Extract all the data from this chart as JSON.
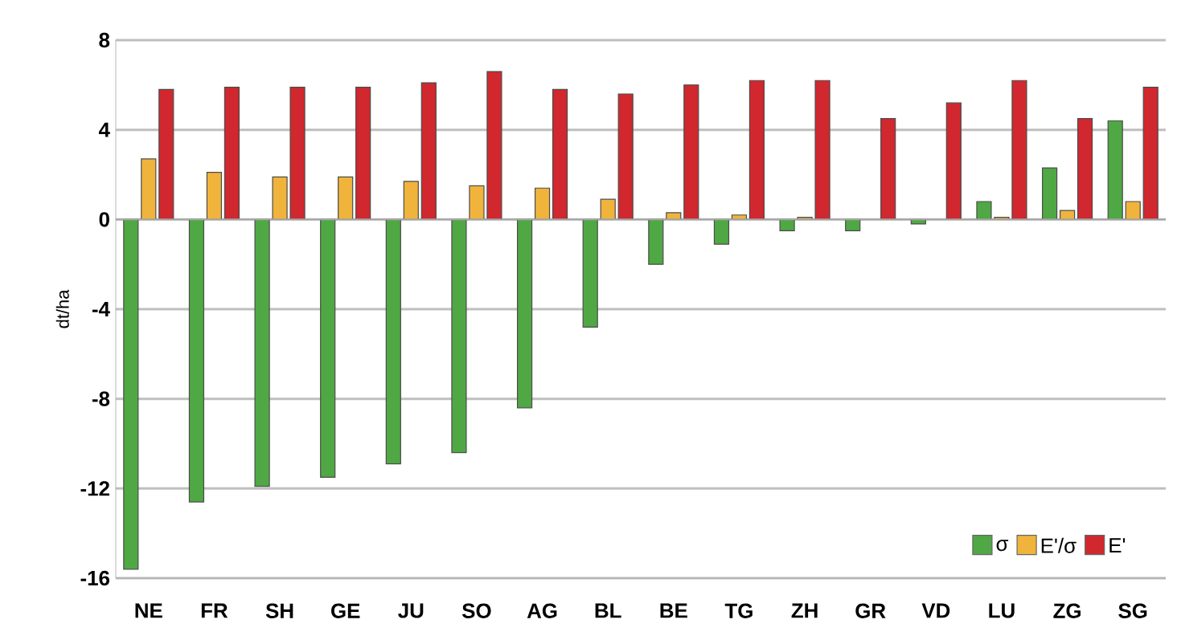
{
  "chart_data": {
    "type": "bar",
    "ylabel": "dt/ha",
    "categories": [
      "NE",
      "FR",
      "SH",
      "GE",
      "JU",
      "SO",
      "AG",
      "BL",
      "BE",
      "TG",
      "ZH",
      "GR",
      "VD",
      "LU",
      "ZG",
      "SG"
    ],
    "series": [
      {
        "name": "σ",
        "color": "#4fa843",
        "values": [
          -15.6,
          -12.6,
          -11.9,
          -11.5,
          -10.9,
          -10.4,
          -8.4,
          -4.8,
          -2.0,
          -1.1,
          -0.5,
          -0.5,
          -0.2,
          0.8,
          2.3,
          4.4
        ]
      },
      {
        "name": "E'/σ",
        "color": "#f0b43c",
        "values": [
          2.7,
          2.1,
          1.9,
          1.9,
          1.7,
          1.5,
          1.4,
          0.9,
          0.3,
          0.2,
          0.1,
          null,
          null,
          0.1,
          0.4,
          0.8
        ]
      },
      {
        "name": "E'",
        "color": "#d0282e",
        "values": [
          5.8,
          5.9,
          5.9,
          5.9,
          6.1,
          6.6,
          5.8,
          5.6,
          6.0,
          6.2,
          6.2,
          4.5,
          5.2,
          6.2,
          4.5,
          5.9
        ]
      }
    ],
    "ylim": [
      -16,
      8
    ],
    "yticks": [
      -16,
      -12,
      -8,
      -4,
      0,
      4,
      8
    ],
    "grid": "y",
    "legend": "bottom right"
  }
}
